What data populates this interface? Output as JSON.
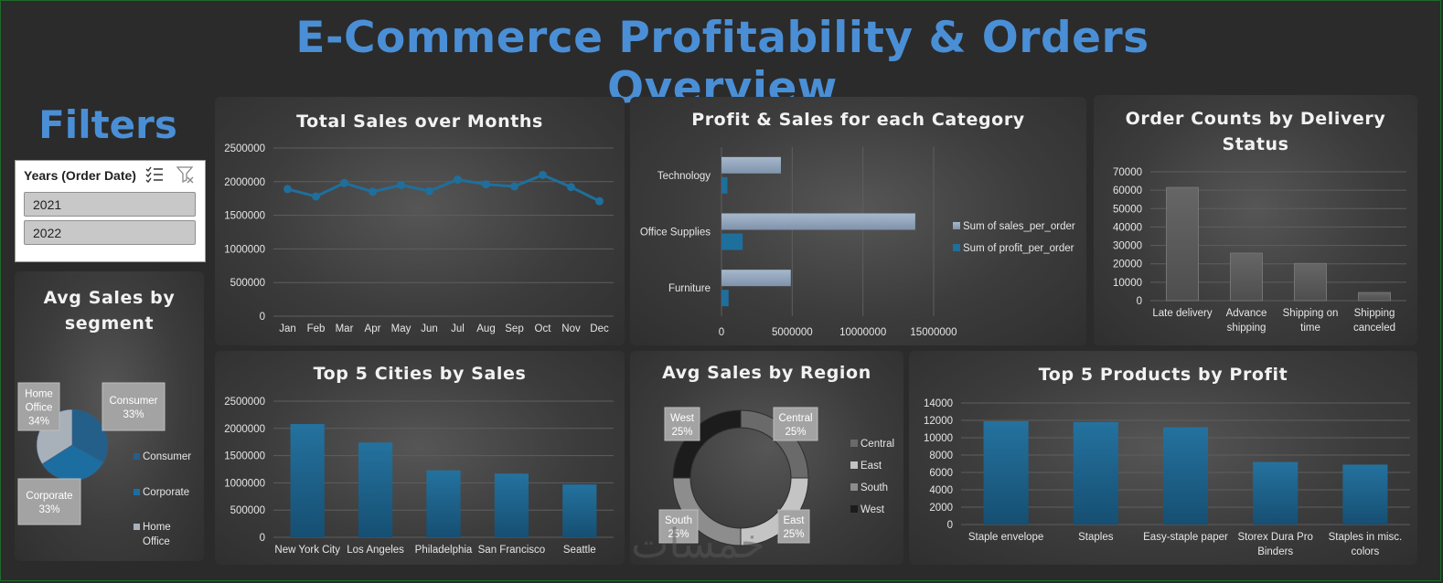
{
  "page": {
    "title": "E-Commerce Profitability & Orders Overview",
    "filters_title": "Filters",
    "slicer": {
      "header": "Years (Order Date)",
      "items": [
        "2021",
        "2022"
      ]
    },
    "watermark": "خمسات"
  },
  "colors": {
    "title_blue": "#4a8fd6",
    "series_blue": "#1f6f9c",
    "series_light": "#8fa4bd",
    "bar_gray": "#5a5a5a"
  },
  "chart_data": [
    {
      "id": "monthly",
      "type": "line",
      "title": "Total Sales over Months",
      "categories": [
        "Jan",
        "Feb",
        "Mar",
        "Apr",
        "May",
        "Jun",
        "Jul",
        "Aug",
        "Sep",
        "Oct",
        "Nov",
        "Dec"
      ],
      "values": [
        1890000,
        1780000,
        1980000,
        1850000,
        1950000,
        1860000,
        2030000,
        1960000,
        1930000,
        2100000,
        1920000,
        1710000
      ],
      "ylim": [
        0,
        2500000
      ],
      "yticks": [
        "0",
        "500000",
        "1000000",
        "1500000",
        "2000000",
        "2500000"
      ],
      "grid": true
    },
    {
      "id": "category",
      "type": "bar",
      "orientation": "horizontal",
      "title": "Profit & Sales for each Category",
      "categories": [
        "Technology",
        "Office Supplies",
        "Furniture"
      ],
      "series": [
        {
          "name": "Sum of sales_per_order",
          "values": [
            4200000,
            13700000,
            4900000
          ]
        },
        {
          "name": "Sum of profit_per_order",
          "values": [
            420000,
            1500000,
            500000
          ]
        }
      ],
      "xlim": [
        0,
        15000000
      ],
      "xticks": [
        "0",
        "5000000",
        "10000000",
        "15000000"
      ],
      "legend": "right",
      "grid": true
    },
    {
      "id": "delivery",
      "type": "bar",
      "title": "Order Counts by Delivery Status",
      "categories": [
        [
          "Late delivery"
        ],
        [
          "Advance",
          "shipping"
        ],
        [
          "Shipping on",
          "time"
        ],
        [
          "Shipping",
          "canceled"
        ]
      ],
      "values": [
        61500,
        25800,
        20200,
        4400
      ],
      "ylim": [
        0,
        70000
      ],
      "yticks": [
        "0",
        "10000",
        "20000",
        "30000",
        "40000",
        "50000",
        "60000",
        "70000"
      ],
      "grid": true
    },
    {
      "id": "segment",
      "type": "pie",
      "title": "Avg Sales by segment",
      "slices": [
        {
          "name": "Consumer",
          "value": 33,
          "label": "Consumer\n33%"
        },
        {
          "name": "Corporate",
          "value": 33,
          "label": "Corporate\n33%"
        },
        {
          "name": "Home Office",
          "value": 34,
          "label": "Home\nOffice\n34%"
        }
      ],
      "legend_labels": [
        [
          "Consumer"
        ],
        [
          "Corporate"
        ],
        [
          "Home",
          "Office"
        ]
      ],
      "legend": "right"
    },
    {
      "id": "cities",
      "type": "bar",
      "title": "Top 5 Cities by Sales",
      "categories": [
        "New York City",
        "Los Angeles",
        "Philadelphia",
        "San Francisco",
        "Seattle"
      ],
      "values": [
        2080000,
        1740000,
        1230000,
        1170000,
        970000
      ],
      "ylim": [
        0,
        2500000
      ],
      "yticks": [
        "0",
        "500000",
        "1000000",
        "1500000",
        "2000000",
        "2500000"
      ],
      "grid": true
    },
    {
      "id": "region",
      "type": "pie",
      "variant": "doughnut",
      "title": "Avg Sales by Region",
      "slices": [
        {
          "name": "Central",
          "value": 25,
          "label": "Central\n25%"
        },
        {
          "name": "East",
          "value": 25,
          "label": "East\n25%"
        },
        {
          "name": "South",
          "value": 25,
          "label": "South\n25%"
        },
        {
          "name": "West",
          "value": 25,
          "label": "West\n25%"
        }
      ],
      "legend": "right"
    },
    {
      "id": "products",
      "type": "bar",
      "title": "Top 5 Products by Profit",
      "categories": [
        [
          "Staple envelope"
        ],
        [
          "Staples"
        ],
        [
          "Easy-staple paper"
        ],
        [
          "Storex Dura Pro",
          "Binders"
        ],
        [
          "Staples in misc.",
          "colors"
        ]
      ],
      "values": [
        11900,
        11800,
        11200,
        7200,
        6900
      ],
      "ylim": [
        0,
        14000
      ],
      "yticks": [
        "0",
        "2000",
        "4000",
        "6000",
        "8000",
        "10000",
        "12000",
        "14000"
      ],
      "grid": true
    }
  ]
}
